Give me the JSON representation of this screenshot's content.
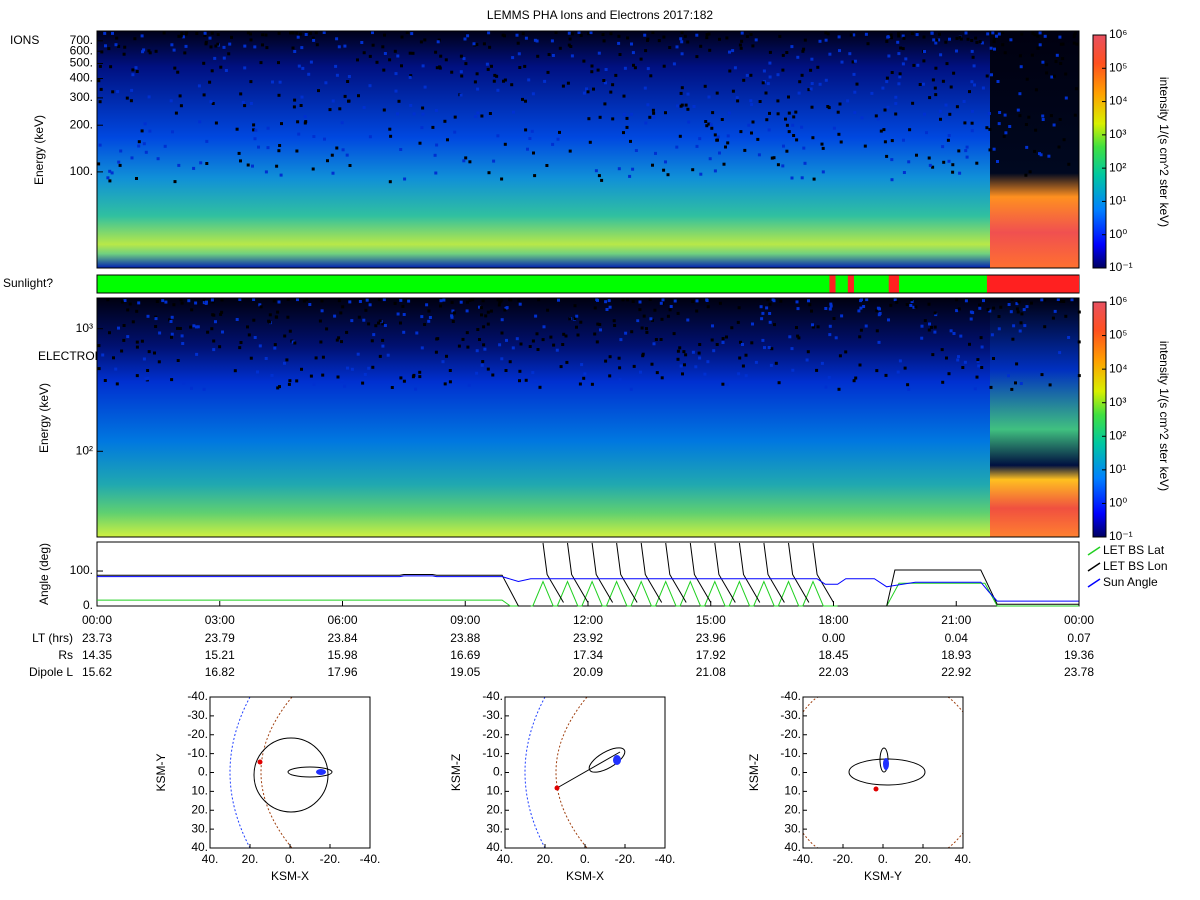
{
  "title": "LEMMS PHA Ions and Electrons  2017:182",
  "ions": {
    "label": "IONS",
    "ylabel": "Energy (keV)",
    "log": true,
    "ylim": [
      24,
      810
    ],
    "yticks": [
      {
        "value": 100,
        "label": "100."
      },
      {
        "value": 200,
        "label": "200."
      },
      {
        "value": 300,
        "label": "300."
      },
      {
        "value": 400,
        "label": "400."
      },
      {
        "value": 500,
        "label": "500."
      },
      {
        "value": 600,
        "label": "600."
      },
      {
        "value": 700,
        "label": "700."
      }
    ]
  },
  "sunlight": {
    "label": "Sunlight?",
    "sun_color": "#00ff00",
    "shadow_color": "#ff2020",
    "shadow_intervals": [
      [
        17.9,
        18.05
      ],
      [
        18.35,
        18.5
      ],
      [
        19.35,
        19.6
      ],
      [
        21.75,
        24
      ]
    ]
  },
  "electrons": {
    "label": "ELECTRONS",
    "ylabel": "Energy (keV)",
    "log": true,
    "ylim": [
      20,
      1780
    ],
    "yticks": [
      {
        "value": 100,
        "label": "10²"
      },
      {
        "value": 1000,
        "label": "10³"
      }
    ]
  },
  "colorbar": {
    "label": "intensity 1/(s cm^2 ster keV)",
    "log": true,
    "lim": [
      0.1,
      1000000
    ],
    "ticks": [
      {
        "value": 0.1,
        "label": "10⁻¹"
      },
      {
        "value": 1,
        "label": "10⁰"
      },
      {
        "value": 10,
        "label": "10¹"
      },
      {
        "value": 100,
        "label": "10²"
      },
      {
        "value": 1000,
        "label": "10³"
      },
      {
        "value": 10000,
        "label": "10⁴"
      },
      {
        "value": 100000,
        "label": "10⁵"
      },
      {
        "value": 1000000,
        "label": "10⁶"
      }
    ]
  },
  "angle": {
    "ylabel": "Angle (deg)",
    "ylim": [
      0,
      183
    ],
    "legend": "right",
    "yticks": [
      {
        "value": 0,
        "label": "0."
      },
      {
        "value": 100,
        "label": "100."
      }
    ],
    "series": [
      {
        "name": "LET BS Lat",
        "color": "#20d020",
        "x": [
          0,
          9.9,
          10.1,
          10.65,
          10.9,
          11.15,
          11.25,
          11.5,
          11.75,
          11.85,
          12.1,
          12.35,
          12.45,
          12.7,
          12.95,
          13.05,
          13.3,
          13.55,
          13.65,
          13.9,
          14.15,
          14.25,
          14.5,
          14.75,
          14.85,
          15.1,
          15.35,
          15.45,
          15.7,
          15.95,
          16.05,
          16.3,
          16.55,
          16.65,
          16.9,
          17.15,
          17.25,
          17.5,
          17.75,
          19.3,
          19.6,
          21.7,
          22.0,
          24
        ],
        "values": [
          17,
          17,
          0,
          0,
          70,
          0,
          0,
          70,
          0,
          0,
          70,
          0,
          0,
          70,
          0,
          0,
          70,
          0,
          0,
          70,
          0,
          0,
          70,
          0,
          0,
          70,
          0,
          0,
          70,
          0,
          0,
          70,
          0,
          0,
          70,
          0,
          0,
          70,
          0,
          0,
          65,
          65,
          0,
          0
        ]
      },
      {
        "name": "LET BS Lon",
        "color": "#000000",
        "x": [
          0,
          7.4,
          7.5,
          8.2,
          8.3,
          9.9,
          10.3,
          10.6,
          10.8,
          10.9,
          11.0,
          11.4,
          11.45,
          11.5,
          11.6,
          12.0,
          12.05,
          12.1,
          12.2,
          12.6,
          12.65,
          12.7,
          12.8,
          13.2,
          13.25,
          13.3,
          13.4,
          13.8,
          13.85,
          13.9,
          14.0,
          14.4,
          14.45,
          14.5,
          14.6,
          15.0,
          15.05,
          15.1,
          15.2,
          15.6,
          15.65,
          15.7,
          15.8,
          16.2,
          16.25,
          16.3,
          16.4,
          16.8,
          16.85,
          16.9,
          17.0,
          17.4,
          17.45,
          17.5,
          17.6,
          18.0,
          18.05,
          18.1,
          19.3,
          19.5,
          21.6,
          22.0,
          24
        ],
        "values": [
          88,
          88,
          90,
          90,
          88,
          88,
          0,
          0,
          null,
          180,
          90,
          10,
          null,
          180,
          90,
          10,
          null,
          180,
          90,
          10,
          null,
          180,
          90,
          10,
          null,
          180,
          90,
          10,
          null,
          180,
          90,
          10,
          null,
          180,
          90,
          10,
          null,
          180,
          90,
          10,
          null,
          180,
          90,
          10,
          null,
          180,
          90,
          10,
          null,
          180,
          90,
          10,
          null,
          180,
          90,
          10,
          null,
          0,
          0,
          103,
          103,
          5,
          5
        ]
      },
      {
        "name": "Sun Angle",
        "color": "#0000ff",
        "x": [
          0,
          7.4,
          7.5,
          8.2,
          8.3,
          9.9,
          10.3,
          10.6,
          17.4,
          17.6,
          17.8,
          18.1,
          18.3,
          18.6,
          19.0,
          19.3,
          20.0,
          21.6,
          21.8,
          22.0,
          24
        ],
        "values": [
          84,
          84,
          86,
          86,
          84,
          84,
          70,
          78,
          78,
          78,
          62,
          62,
          78,
          78,
          78,
          55,
          68,
          68,
          40,
          14,
          14
        ]
      }
    ]
  },
  "time_axis": {
    "xlim": [
      0,
      24
    ],
    "xticks": [
      {
        "value": 0,
        "label": "00:00"
      },
      {
        "value": 3,
        "label": "03:00"
      },
      {
        "value": 6,
        "label": "06:00"
      },
      {
        "value": 9,
        "label": "09:00"
      },
      {
        "value": 12,
        "label": "12:00"
      },
      {
        "value": 15,
        "label": "15:00"
      },
      {
        "value": 18,
        "label": "18:00"
      },
      {
        "value": 21,
        "label": "21:00"
      },
      {
        "value": 24,
        "label": "00:00"
      }
    ]
  },
  "ephemeris": {
    "rows": [
      {
        "label": "LT (hrs)",
        "values": [
          "23.73",
          "23.79",
          "23.84",
          "23.88",
          "23.92",
          "23.96",
          "0.00",
          "0.04",
          "0.07"
        ]
      },
      {
        "label": "Rs",
        "values": [
          "14.35",
          "15.21",
          "15.98",
          "16.69",
          "17.34",
          "17.92",
          "18.45",
          "18.93",
          "19.36"
        ]
      },
      {
        "label": "Dipole L",
        "values": [
          "15.62",
          "16.82",
          "17.96",
          "19.05",
          "20.09",
          "21.08",
          "22.03",
          "22.92",
          "23.78"
        ]
      }
    ]
  },
  "orbits": [
    {
      "xlabel": "KSM-X",
      "ylabel": "KSM-Y",
      "xlim": [
        40,
        -40
      ],
      "ylim": [
        -40,
        40
      ],
      "xticks": [
        {
          "value": 40,
          "label": "40."
        },
        {
          "value": 20,
          "label": "20."
        },
        {
          "value": 0,
          "label": "0."
        },
        {
          "value": -20,
          "label": "-20."
        },
        {
          "value": -40,
          "label": "-40."
        }
      ],
      "yticks": [
        {
          "value": -40,
          "label": "-40."
        },
        {
          "value": -30,
          "label": "-30."
        },
        {
          "value": -20,
          "label": "-20."
        },
        {
          "value": -10,
          "label": "-10."
        },
        {
          "value": 0,
          "label": "0."
        },
        {
          "value": 10,
          "label": "10."
        },
        {
          "value": 20,
          "label": "20."
        },
        {
          "value": 30,
          "label": "30."
        },
        {
          "value": 40,
          "label": "40."
        }
      ]
    },
    {
      "xlabel": "KSM-X",
      "ylabel": "KSM-Z",
      "xlim": [
        40,
        -40
      ],
      "ylim": [
        -40,
        40
      ],
      "xticks": [
        {
          "value": 40,
          "label": "40."
        },
        {
          "value": 20,
          "label": "20."
        },
        {
          "value": 0,
          "label": "0."
        },
        {
          "value": -20,
          "label": "-20."
        },
        {
          "value": -40,
          "label": "-40."
        }
      ],
      "yticks": [
        {
          "value": -40,
          "label": "-40."
        },
        {
          "value": -30,
          "label": "-30."
        },
        {
          "value": -20,
          "label": "-20."
        },
        {
          "value": -10,
          "label": "-10."
        },
        {
          "value": 0,
          "label": "0."
        },
        {
          "value": 10,
          "label": "10."
        },
        {
          "value": 20,
          "label": "20."
        },
        {
          "value": 30,
          "label": "30."
        },
        {
          "value": 40,
          "label": "40."
        }
      ]
    },
    {
      "xlabel": "KSM-Y",
      "ylabel": "KSM-Z",
      "xlim": [
        -40,
        40
      ],
      "ylim": [
        -40,
        40
      ],
      "xticks": [
        {
          "value": -40,
          "label": "-40."
        },
        {
          "value": -20,
          "label": "-20."
        },
        {
          "value": 0,
          "label": "0."
        },
        {
          "value": 20,
          "label": "20."
        },
        {
          "value": 40,
          "label": "40."
        }
      ],
      "yticks": [
        {
          "value": -40,
          "label": "-40."
        },
        {
          "value": -30,
          "label": "-30."
        },
        {
          "value": -20,
          "label": "-20."
        },
        {
          "value": -10,
          "label": "-10."
        },
        {
          "value": 0,
          "label": "0."
        },
        {
          "value": 10,
          "label": "10."
        },
        {
          "value": 20,
          "label": "20."
        },
        {
          "value": 30,
          "label": "30."
        },
        {
          "value": 40,
          "label": "40."
        }
      ]
    }
  ]
}
